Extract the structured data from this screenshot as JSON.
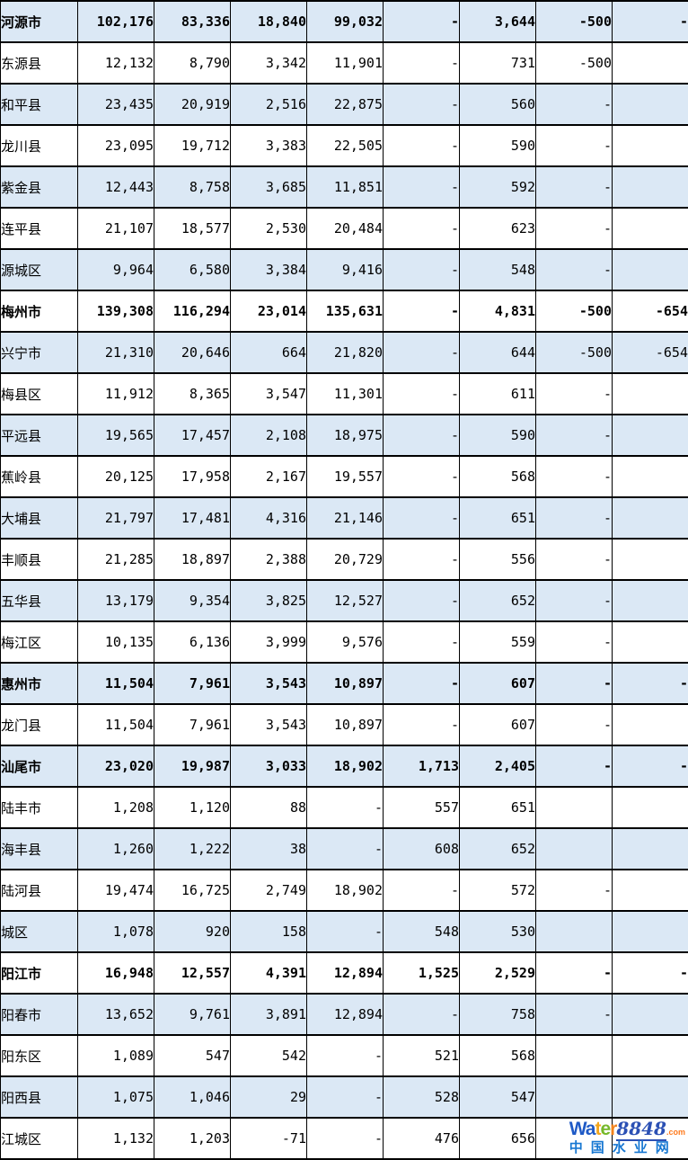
{
  "colors": {
    "stripe_blue": "#dbe8f5",
    "row_white": "#ffffff",
    "grid_border": "#000000",
    "text": "#000000"
  },
  "table": {
    "num_columns": 9,
    "rows": [
      {
        "name": "河源市",
        "bold": true,
        "values": [
          "102,176",
          "83,336",
          "18,840",
          "99,032",
          "-",
          "3,644",
          "-500",
          "-"
        ]
      },
      {
        "name": "东源县",
        "bold": false,
        "values": [
          "12,132",
          "8,790",
          "3,342",
          "11,901",
          "-",
          "731",
          "-500",
          ""
        ]
      },
      {
        "name": "和平县",
        "bold": false,
        "values": [
          "23,435",
          "20,919",
          "2,516",
          "22,875",
          "-",
          "560",
          "-",
          ""
        ]
      },
      {
        "name": "龙川县",
        "bold": false,
        "values": [
          "23,095",
          "19,712",
          "3,383",
          "22,505",
          "-",
          "590",
          "-",
          ""
        ]
      },
      {
        "name": "紫金县",
        "bold": false,
        "values": [
          "12,443",
          "8,758",
          "3,685",
          "11,851",
          "-",
          "592",
          "-",
          ""
        ]
      },
      {
        "name": "连平县",
        "bold": false,
        "values": [
          "21,107",
          "18,577",
          "2,530",
          "20,484",
          "-",
          "623",
          "-",
          ""
        ]
      },
      {
        "name": "源城区",
        "bold": false,
        "values": [
          "9,964",
          "6,580",
          "3,384",
          "9,416",
          "-",
          "548",
          "-",
          ""
        ]
      },
      {
        "name": "梅州市",
        "bold": true,
        "values": [
          "139,308",
          "116,294",
          "23,014",
          "135,631",
          "-",
          "4,831",
          "-500",
          "-654"
        ]
      },
      {
        "name": "兴宁市",
        "bold": false,
        "values": [
          "21,310",
          "20,646",
          "664",
          "21,820",
          "-",
          "644",
          "-500",
          "-654"
        ]
      },
      {
        "name": "梅县区",
        "bold": false,
        "values": [
          "11,912",
          "8,365",
          "3,547",
          "11,301",
          "-",
          "611",
          "-",
          ""
        ]
      },
      {
        "name": "平远县",
        "bold": false,
        "values": [
          "19,565",
          "17,457",
          "2,108",
          "18,975",
          "-",
          "590",
          "-",
          ""
        ]
      },
      {
        "name": "蕉岭县",
        "bold": false,
        "values": [
          "20,125",
          "17,958",
          "2,167",
          "19,557",
          "-",
          "568",
          "-",
          ""
        ]
      },
      {
        "name": "大埔县",
        "bold": false,
        "values": [
          "21,797",
          "17,481",
          "4,316",
          "21,146",
          "-",
          "651",
          "-",
          ""
        ]
      },
      {
        "name": "丰顺县",
        "bold": false,
        "values": [
          "21,285",
          "18,897",
          "2,388",
          "20,729",
          "-",
          "556",
          "-",
          ""
        ]
      },
      {
        "name": "五华县",
        "bold": false,
        "values": [
          "13,179",
          "9,354",
          "3,825",
          "12,527",
          "-",
          "652",
          "-",
          ""
        ]
      },
      {
        "name": "梅江区",
        "bold": false,
        "values": [
          "10,135",
          "6,136",
          "3,999",
          "9,576",
          "-",
          "559",
          "-",
          ""
        ]
      },
      {
        "name": "惠州市",
        "bold": true,
        "values": [
          "11,504",
          "7,961",
          "3,543",
          "10,897",
          "-",
          "607",
          "-",
          "-"
        ]
      },
      {
        "name": "龙门县",
        "bold": false,
        "values": [
          "11,504",
          "7,961",
          "3,543",
          "10,897",
          "-",
          "607",
          "-",
          ""
        ]
      },
      {
        "name": "汕尾市",
        "bold": true,
        "values": [
          "23,020",
          "19,987",
          "3,033",
          "18,902",
          "1,713",
          "2,405",
          "-",
          "-"
        ]
      },
      {
        "name": "陆丰市",
        "bold": false,
        "values": [
          "1,208",
          "1,120",
          "88",
          "-",
          "557",
          "651",
          "",
          ""
        ]
      },
      {
        "name": "海丰县",
        "bold": false,
        "values": [
          "1,260",
          "1,222",
          "38",
          "-",
          "608",
          "652",
          "",
          ""
        ]
      },
      {
        "name": "陆河县",
        "bold": false,
        "values": [
          "19,474",
          "16,725",
          "2,749",
          "18,902",
          "-",
          "572",
          "-",
          ""
        ]
      },
      {
        "name": "城区",
        "bold": false,
        "values": [
          "1,078",
          "920",
          "158",
          "-",
          "548",
          "530",
          "",
          ""
        ]
      },
      {
        "name": "阳江市",
        "bold": true,
        "values": [
          "16,948",
          "12,557",
          "4,391",
          "12,894",
          "1,525",
          "2,529",
          "-",
          "-"
        ]
      },
      {
        "name": "阳春市",
        "bold": false,
        "values": [
          "13,652",
          "9,761",
          "3,891",
          "12,894",
          "-",
          "758",
          "-",
          ""
        ]
      },
      {
        "name": "阳东区",
        "bold": false,
        "values": [
          "1,089",
          "547",
          "542",
          "-",
          "521",
          "568",
          "",
          ""
        ]
      },
      {
        "name": "阳西县",
        "bold": false,
        "values": [
          "1,075",
          "1,046",
          "29",
          "-",
          "528",
          "547",
          "",
          ""
        ]
      },
      {
        "name": "江城区",
        "bold": false,
        "values": [
          "1,132",
          "1,203",
          "-71",
          "-",
          "476",
          "656",
          "",
          ""
        ]
      }
    ]
  },
  "watermark": {
    "brand": [
      {
        "text": "Wa",
        "color": "#1f5ac6",
        "style": "sans"
      },
      {
        "text": "t",
        "color": "#f2a51c",
        "style": "sans"
      },
      {
        "text": "e",
        "color": "#76b82a",
        "style": "sans"
      },
      {
        "text": "r",
        "color": "#f2821c",
        "style": "sans"
      },
      {
        "text": "8848",
        "color": "#2b50b4",
        "style": "serif-italic"
      }
    ],
    "suffix": ".com",
    "suffix_color": "#ff7a1c",
    "subtitle": "中国水业网",
    "subtitle_color": "#1878d2"
  }
}
